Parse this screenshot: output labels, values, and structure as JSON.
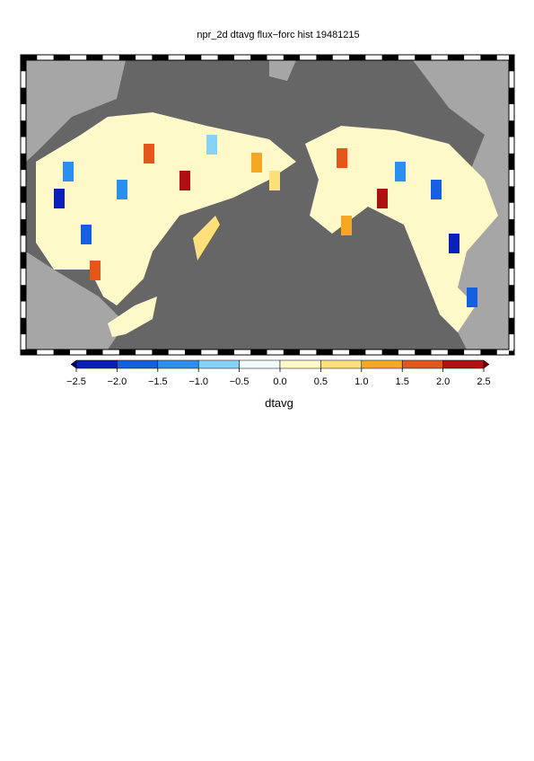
{
  "chart_data": {
    "type": "map",
    "title": "npr_2d dtavg flux−forc hist 19481215",
    "colorbar_label": "dtavg",
    "clim": [
      -2.5,
      2.5
    ],
    "cticks": [
      {
        "value": -2.5,
        "label": "−2.5"
      },
      {
        "value": -2.0,
        "label": "−2.0"
      },
      {
        "value": -1.5,
        "label": "−1.5"
      },
      {
        "value": -1.0,
        "label": "−1.0"
      },
      {
        "value": -0.5,
        "label": "−0.5"
      },
      {
        "value": 0,
        "label": "0.0"
      },
      0.5,
      {
        "value": 1,
        "label": "1.0"
      },
      1.5,
      {
        "value": 2,
        "label": "2.0"
      },
      2.5
    ],
    "colors": [
      "#0a1fb8",
      "#1560e0",
      "#2b8ff0",
      "#86d3f5",
      "#f2fbfb",
      "#fff8c8",
      "#fde07a",
      "#f5a623",
      "#e5561a",
      "#b01010"
    ],
    "under_color": "#000070",
    "over_color": "#6a0000",
    "ocean_color": "#666666",
    "land_color": "#a6a6a6"
  }
}
